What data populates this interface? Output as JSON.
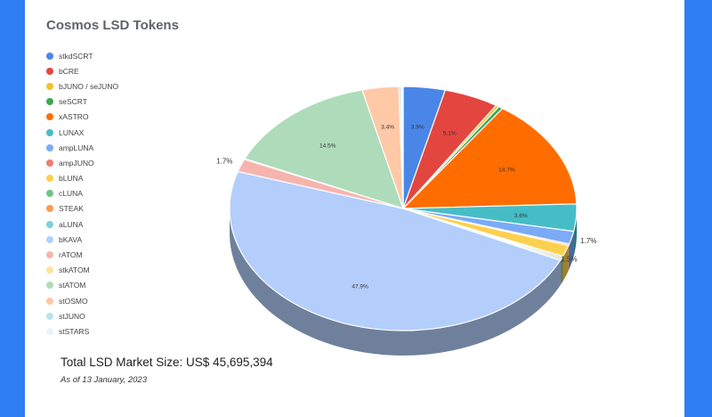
{
  "chart_data": {
    "type": "pie",
    "title": "Cosmos LSD Tokens",
    "legend_position": "left",
    "three_d": true,
    "slices": [
      {
        "label": "stkdSCRT",
        "value": 3.9,
        "color": "#4a86e8",
        "shown": "3.9%"
      },
      {
        "label": "bCRE",
        "value": 5.1,
        "color": "#e3463f",
        "shown": "5.1%"
      },
      {
        "label": "bJUNO / seJUNO",
        "value": 0.3,
        "color": "#f4c12a",
        "shown": ""
      },
      {
        "label": "seSCRT",
        "value": 0.4,
        "color": "#3aa84f",
        "shown": ""
      },
      {
        "label": "xASTRO",
        "value": 14.7,
        "color": "#ff6d01",
        "shown": "14.7%"
      },
      {
        "label": "LUNAX",
        "value": 3.6,
        "color": "#46bdc6",
        "shown": "3.6%"
      },
      {
        "label": "ampLUNA",
        "value": 1.7,
        "color": "#7baaf7",
        "shown": "1.7%"
      },
      {
        "label": "ampJUNO",
        "value": 0.2,
        "color": "#f07b72",
        "shown": ""
      },
      {
        "label": "bLUNA",
        "value": 1.5,
        "color": "#fcd04f",
        "shown": "1.5%"
      },
      {
        "label": "cLUNA",
        "value": 0.2,
        "color": "#71c287",
        "shown": ""
      },
      {
        "label": "STEAK",
        "value": 0.2,
        "color": "#ff994d",
        "shown": ""
      },
      {
        "label": "aLUNA",
        "value": 0.2,
        "color": "#7ed1d7",
        "shown": ""
      },
      {
        "label": "bKAVA",
        "value": 47.9,
        "color": "#b3cefb",
        "shown": "47.9%"
      },
      {
        "label": "rATOM",
        "value": 1.7,
        "color": "#f7b4ae",
        "shown": "1.7%"
      },
      {
        "label": "stkATOM",
        "value": 0.1,
        "color": "#fde49b",
        "shown": ""
      },
      {
        "label": "stATOM",
        "value": 14.5,
        "color": "#aedcba",
        "shown": "14.5%"
      },
      {
        "label": "stOSMO",
        "value": 3.4,
        "color": "#ffc8a6",
        "shown": "3.4%"
      },
      {
        "label": "stJUNO",
        "value": 0.2,
        "color": "#b5e5e8",
        "shown": ""
      },
      {
        "label": "stSTARS",
        "value": 0.2,
        "color": "#ecf1fb",
        "shown": ""
      }
    ]
  },
  "footer": {
    "total": "Total LSD Market Size: US$ 45,695,394",
    "date": "As of 13 January, 2023"
  }
}
